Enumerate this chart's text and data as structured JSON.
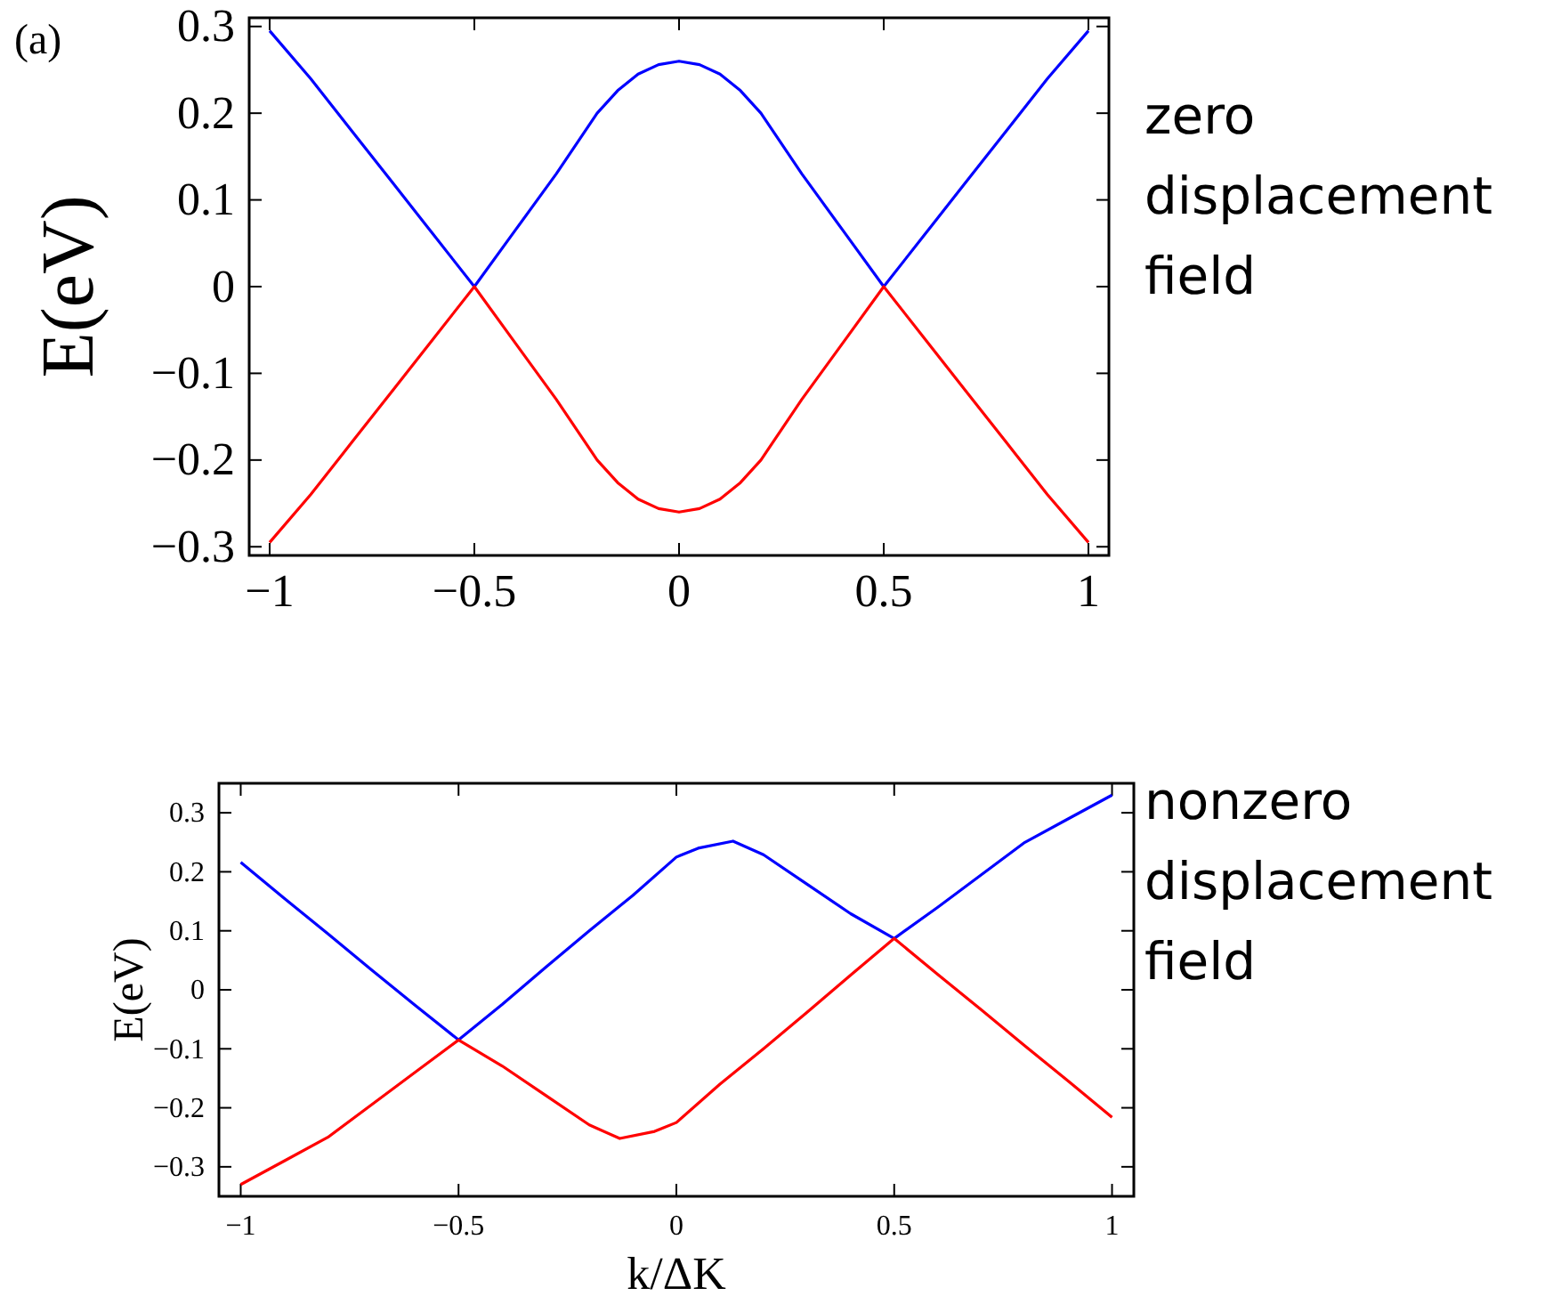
{
  "chart_data": [
    {
      "type": "line",
      "ylabel": "E(eV)",
      "annotations": [
        "(a)",
        "zero displacement field"
      ],
      "xlim": [
        -1.05,
        1.05
      ],
      "ylim": [
        -0.31,
        0.31
      ],
      "xticks": [
        -1,
        -0.5,
        0,
        0.5,
        1
      ],
      "yticks": [
        -0.3,
        -0.2,
        -0.1,
        0,
        0.1,
        0.2,
        0.3
      ],
      "grid": false,
      "line_style": "solid",
      "marker": "none",
      "series": [
        {
          "color": "#0000ff",
          "x": [
            -1,
            -0.9,
            -0.8,
            -0.7,
            -0.6,
            -0.5,
            -0.4,
            -0.3,
            -0.2,
            -0.15,
            -0.1,
            -0.05,
            0,
            0.05,
            0.1,
            0.15,
            0.2,
            0.3,
            0.4,
            0.5,
            0.6,
            0.7,
            0.8,
            0.9,
            1
          ],
          "values": [
            0.295,
            0.24,
            0.18,
            0.12,
            0.06,
            0,
            0.065,
            0.13,
            0.2,
            0.226,
            0.245,
            0.256,
            0.26,
            0.256,
            0.245,
            0.226,
            0.2,
            0.13,
            0.065,
            0,
            0.06,
            0.12,
            0.18,
            0.24,
            0.295
          ]
        },
        {
          "color": "#ff0000",
          "x": [
            -1,
            -0.9,
            -0.8,
            -0.7,
            -0.6,
            -0.5,
            -0.4,
            -0.3,
            -0.2,
            -0.15,
            -0.1,
            -0.05,
            0,
            0.05,
            0.1,
            0.15,
            0.2,
            0.3,
            0.4,
            0.5,
            0.6,
            0.7,
            0.8,
            0.9,
            1
          ],
          "values": [
            -0.295,
            -0.24,
            -0.18,
            -0.12,
            -0.06,
            0,
            -0.065,
            -0.13,
            -0.2,
            -0.226,
            -0.245,
            -0.256,
            -0.26,
            -0.256,
            -0.245,
            -0.226,
            -0.2,
            -0.13,
            -0.065,
            0,
            -0.06,
            -0.12,
            -0.18,
            -0.24,
            -0.295
          ]
        }
      ]
    },
    {
      "type": "line",
      "xlabel": "k/ΔK",
      "ylabel": "E(eV)",
      "annotations": [
        "nonzero displacement field"
      ],
      "xlim": [
        -1.05,
        1.05
      ],
      "ylim": [
        -0.35,
        0.35
      ],
      "xticks": [
        -1,
        -0.5,
        0,
        0.5,
        1
      ],
      "yticks": [
        -0.3,
        -0.2,
        -0.1,
        0,
        0.1,
        0.2,
        0.3
      ],
      "grid": false,
      "line_style": "solid",
      "marker": "none",
      "series": [
        {
          "color": "#0000ff",
          "x": [
            -1,
            -0.9,
            -0.8,
            -0.7,
            -0.6,
            -0.5,
            -0.4,
            -0.3,
            -0.2,
            -0.1,
            0,
            0.05,
            0.13,
            0.2,
            0.3,
            0.4,
            0.5,
            0.6,
            0.7,
            0.8,
            0.9,
            1
          ],
          "values": [
            0.216,
            0.155,
            0.095,
            0.034,
            -0.026,
            -0.085,
            -0.025,
            0.038,
            0.1,
            0.16,
            0.225,
            0.24,
            0.252,
            0.229,
            0.179,
            0.129,
            0.087,
            0.14,
            0.195,
            0.25,
            0.29,
            0.33
          ]
        },
        {
          "color": "#ff0000",
          "x": [
            -1,
            -0.9,
            -0.8,
            -0.7,
            -0.6,
            -0.5,
            -0.4,
            -0.3,
            -0.2,
            -0.13,
            -0.05,
            0,
            0.1,
            0.2,
            0.3,
            0.4,
            0.5,
            0.6,
            0.7,
            0.8,
            0.9,
            1
          ],
          "values": [
            -0.33,
            -0.29,
            -0.25,
            -0.195,
            -0.14,
            -0.085,
            -0.129,
            -0.179,
            -0.229,
            -0.252,
            -0.24,
            -0.225,
            -0.16,
            -0.1,
            -0.038,
            0.025,
            0.087,
            0.026,
            -0.034,
            -0.095,
            -0.155,
            -0.216
          ]
        }
      ]
    }
  ]
}
